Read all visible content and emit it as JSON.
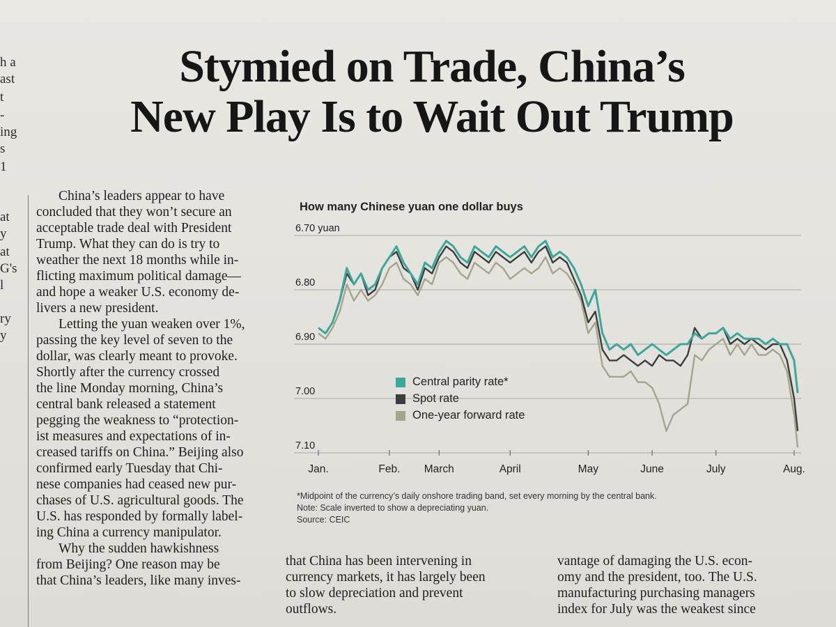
{
  "left_fragments": [
    "h a",
    "ast",
    "t",
    "-",
    "ing",
    "s",
    "1",
    "at",
    "y",
    "at",
    "G's",
    "l",
    "ry",
    "y"
  ],
  "headline": {
    "line1": "Stymied on Trade, China’s",
    "line2": "New Play Is to Wait Out Trump"
  },
  "column1": {
    "para1": [
      "China’s leaders appear to have",
      "concluded that they won’t secure an",
      "acceptable trade deal with President",
      "Trump. What they can do is try to",
      "weather the next 18 months while in-",
      "flicting maximum political damage—",
      "and hope a weaker U.S. economy de-",
      "livers a new president."
    ],
    "para2": [
      "Letting the yuan weaken over 1%,",
      "passing the key level of seven to the",
      "dollar, was clearly meant to provoke.",
      "Shortly after the currency crossed",
      "the line Monday morning, China’s",
      "central bank released a statement",
      "pegging the weakness to “protection-",
      "ist measures and expectations of in-",
      "creased tariffs on China.” Beijing also",
      "confirmed early Tuesday that Chi-",
      "nese companies had ceased new pur-",
      "chases of U.S. agricultural goods. The",
      "U.S. has responded by formally label-",
      "ing China a currency manipulator."
    ],
    "para3": [
      "Why the sudden hawkishness",
      "from Beijing? One reason may be",
      "that China’s leaders, like many inves-"
    ]
  },
  "column2": [
    "that China has been intervening in",
    "currency markets, it has largely been",
    "to slow depreciation and prevent",
    "outflows."
  ],
  "column3": [
    "vantage of damaging the U.S. econ-",
    "omy and the president, too. The U.S.",
    "manufacturing purchasing managers",
    "index for July was the weakest since"
  ],
  "footnotes": {
    "note1": "*Midpoint of the currency’s daily onshore trading band, set every morning by the central bank.",
    "note2": "Note: Scale inverted to show a depreciating yuan.",
    "source": "Source: CEIC"
  },
  "chart_data": {
    "type": "line",
    "title": "How many Chinese yuan one dollar buys",
    "xlabel": "",
    "ylabel": "",
    "y_inverted": true,
    "ylim": [
      6.7,
      7.1
    ],
    "y_ticks": [
      6.7,
      6.8,
      6.9,
      7.0,
      7.1
    ],
    "y_tick_labels": [
      "6.70 yuan",
      "6.80",
      "6.90",
      "7.00",
      "7.10"
    ],
    "x_tick_labels": [
      "Jan.",
      "Feb.",
      "March",
      "April",
      "May",
      "June",
      "July",
      "Aug."
    ],
    "x_tick_positions": [
      0,
      1,
      1.7,
      2.7,
      3.8,
      4.7,
      5.6,
      6.7
    ],
    "x": [
      0,
      0.1,
      0.2,
      0.3,
      0.4,
      0.5,
      0.6,
      0.7,
      0.8,
      0.9,
      1.0,
      1.1,
      1.2,
      1.3,
      1.4,
      1.5,
      1.6,
      1.7,
      1.8,
      1.9,
      2.0,
      2.1,
      2.2,
      2.3,
      2.4,
      2.5,
      2.6,
      2.7,
      2.8,
      2.9,
      3.0,
      3.1,
      3.2,
      3.3,
      3.4,
      3.5,
      3.6,
      3.7,
      3.8,
      3.9,
      4.0,
      4.1,
      4.2,
      4.3,
      4.4,
      4.5,
      4.6,
      4.7,
      4.8,
      4.9,
      5.0,
      5.1,
      5.2,
      5.3,
      5.4,
      5.5,
      5.6,
      5.7,
      5.8,
      5.9,
      6.0,
      6.1,
      6.2,
      6.3,
      6.4,
      6.5,
      6.6,
      6.7,
      6.75
    ],
    "series": [
      {
        "name": "Central parity rate*",
        "color": "#3aa89a",
        "values": [
          6.87,
          6.88,
          6.86,
          6.82,
          6.76,
          6.79,
          6.77,
          6.8,
          6.79,
          6.76,
          6.74,
          6.72,
          6.75,
          6.77,
          6.79,
          6.75,
          6.76,
          6.73,
          6.71,
          6.72,
          6.74,
          6.75,
          6.72,
          6.73,
          6.74,
          6.72,
          6.73,
          6.74,
          6.73,
          6.72,
          6.74,
          6.72,
          6.71,
          6.74,
          6.73,
          6.74,
          6.76,
          6.79,
          6.83,
          6.8,
          6.88,
          6.91,
          6.9,
          6.91,
          6.9,
          6.92,
          6.91,
          6.9,
          6.91,
          6.92,
          6.91,
          6.9,
          6.9,
          6.88,
          6.89,
          6.88,
          6.88,
          6.87,
          6.89,
          6.88,
          6.89,
          6.89,
          6.89,
          6.9,
          6.89,
          6.9,
          6.9,
          6.93,
          6.99
        ]
      },
      {
        "name": "Spot rate",
        "color": "#3c3c3c",
        "values": [
          6.87,
          6.88,
          6.86,
          6.82,
          6.77,
          6.79,
          6.77,
          6.81,
          6.8,
          6.76,
          6.74,
          6.73,
          6.76,
          6.77,
          6.8,
          6.76,
          6.77,
          6.74,
          6.72,
          6.73,
          6.75,
          6.76,
          6.73,
          6.74,
          6.75,
          6.73,
          6.74,
          6.75,
          6.74,
          6.73,
          6.75,
          6.73,
          6.72,
          6.75,
          6.74,
          6.75,
          6.78,
          6.81,
          6.86,
          6.84,
          6.91,
          6.93,
          6.93,
          6.92,
          6.93,
          6.94,
          6.93,
          6.94,
          6.92,
          6.93,
          6.93,
          6.94,
          6.92,
          6.87,
          6.89,
          6.88,
          6.88,
          6.87,
          6.9,
          6.89,
          6.9,
          6.89,
          6.9,
          6.91,
          6.9,
          6.9,
          6.93,
          7.0,
          7.06
        ]
      },
      {
        "name": "One-year forward rate",
        "color": "#a6a48a",
        "values": [
          6.88,
          6.89,
          6.87,
          6.84,
          6.79,
          6.82,
          6.8,
          6.82,
          6.81,
          6.79,
          6.76,
          6.75,
          6.78,
          6.79,
          6.81,
          6.78,
          6.79,
          6.75,
          6.74,
          6.75,
          6.77,
          6.78,
          6.75,
          6.76,
          6.77,
          6.75,
          6.76,
          6.78,
          6.77,
          6.76,
          6.77,
          6.76,
          6.74,
          6.77,
          6.76,
          6.77,
          6.79,
          6.82,
          6.88,
          6.86,
          6.94,
          6.96,
          6.96,
          6.96,
          6.95,
          6.97,
          6.97,
          6.98,
          7.01,
          7.06,
          7.03,
          7.02,
          7.01,
          6.92,
          6.93,
          6.91,
          6.9,
          6.89,
          6.92,
          6.9,
          6.92,
          6.9,
          6.92,
          6.92,
          6.91,
          6.92,
          6.95,
          7.03,
          7.09
        ]
      }
    ],
    "legend_position": "center-left",
    "grid": true
  }
}
